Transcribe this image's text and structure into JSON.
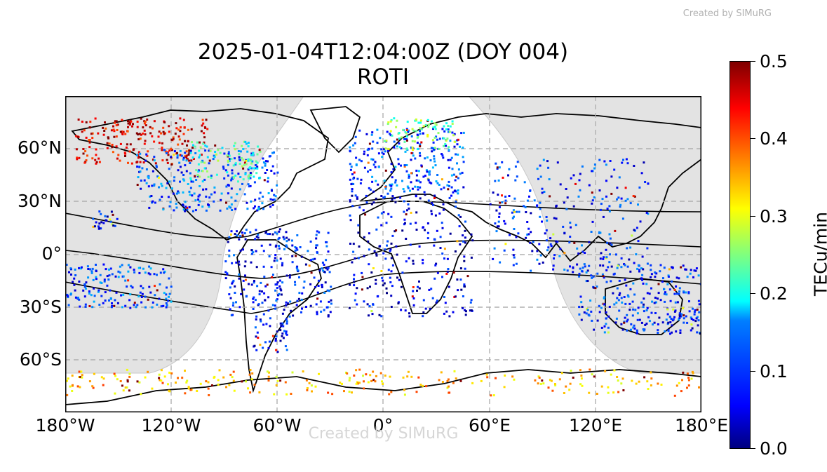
{
  "credit_top": "Created by SIMuRG",
  "watermark": "Created by SIMuRG",
  "title_line1": "2025-01-04T12:04:00Z (DOY 004)",
  "title_line2": "ROTI",
  "map": {
    "projection": "PlateCarree",
    "lon_range": [
      -180,
      180
    ],
    "lat_range": [
      -90,
      90
    ],
    "lat_ticks": [
      {
        "value": 60,
        "label": "60°N"
      },
      {
        "value": 30,
        "label": "30°N"
      },
      {
        "value": 0,
        "label": "0°"
      },
      {
        "value": -30,
        "label": "30°S"
      },
      {
        "value": -60,
        "label": "60°S"
      }
    ],
    "lon_ticks": [
      {
        "value": -180,
        "label": "180°W"
      },
      {
        "value": -120,
        "label": "120°W"
      },
      {
        "value": -60,
        "label": "60°W"
      },
      {
        "value": 0,
        "label": "0°"
      },
      {
        "value": 60,
        "label": "60°E"
      },
      {
        "value": 120,
        "label": "120°E"
      },
      {
        "value": 180,
        "label": "180°E"
      }
    ],
    "grid": "dashed",
    "night_shading_color": "#e3e3e3"
  },
  "colorbar": {
    "label": "TECu/min",
    "min": 0.0,
    "max": 0.5,
    "ticks": [
      "0.0",
      "0.1",
      "0.2",
      "0.3",
      "0.4",
      "0.5"
    ],
    "colormap": "jet"
  },
  "chart_data": {
    "type": "scatter",
    "title": "2025-01-04T12:04:00Z (DOY 004)\nROTI",
    "xlabel": "",
    "ylabel": "",
    "xlim": [
      -180,
      180
    ],
    "ylim": [
      -90,
      90
    ],
    "color_label": "TECu/min",
    "color_range": [
      0.0,
      0.5
    ],
    "regions": [
      {
        "lon": [
          -175,
          -100
        ],
        "lat": [
          52,
          78
        ],
        "value_mean": 0.45
      },
      {
        "lon": [
          -140,
          -60
        ],
        "lat": [
          25,
          60
        ],
        "value_mean": 0.1
      },
      {
        "lon": [
          -110,
          -70
        ],
        "lat": [
          42,
          65
        ],
        "value_mean": 0.22
      },
      {
        "lon": [
          -90,
          -30
        ],
        "lat": [
          -35,
          15
        ],
        "value_mean": 0.07
      },
      {
        "lon": [
          -75,
          -55
        ],
        "lat": [
          -55,
          -35
        ],
        "value_mean": 0.06
      },
      {
        "lon": [
          -20,
          45
        ],
        "lat": [
          35,
          72
        ],
        "value_mean": 0.1
      },
      {
        "lon": [
          0,
          40
        ],
        "lat": [
          60,
          78
        ],
        "value_mean": 0.25
      },
      {
        "lon": [
          -20,
          50
        ],
        "lat": [
          -35,
          35
        ],
        "value_mean": 0.05
      },
      {
        "lon": [
          60,
          150
        ],
        "lat": [
          -10,
          55
        ],
        "value_mean": 0.08
      },
      {
        "lon": [
          110,
          180
        ],
        "lat": [
          -45,
          -5
        ],
        "value_mean": 0.08
      },
      {
        "lon": [
          160,
          180
        ],
        "lat": [
          -45,
          -30
        ],
        "value_mean": 0.05
      },
      {
        "lon": [
          -165,
          -150
        ],
        "lat": [
          15,
          25
        ],
        "value_mean": 0.06
      },
      {
        "lon": [
          -180,
          -120
        ],
        "lat": [
          -30,
          -5
        ],
        "value_mean": 0.1
      },
      {
        "lon": [
          -180,
          180
        ],
        "lat": [
          -80,
          -65
        ],
        "value_mean": 0.35
      }
    ]
  }
}
